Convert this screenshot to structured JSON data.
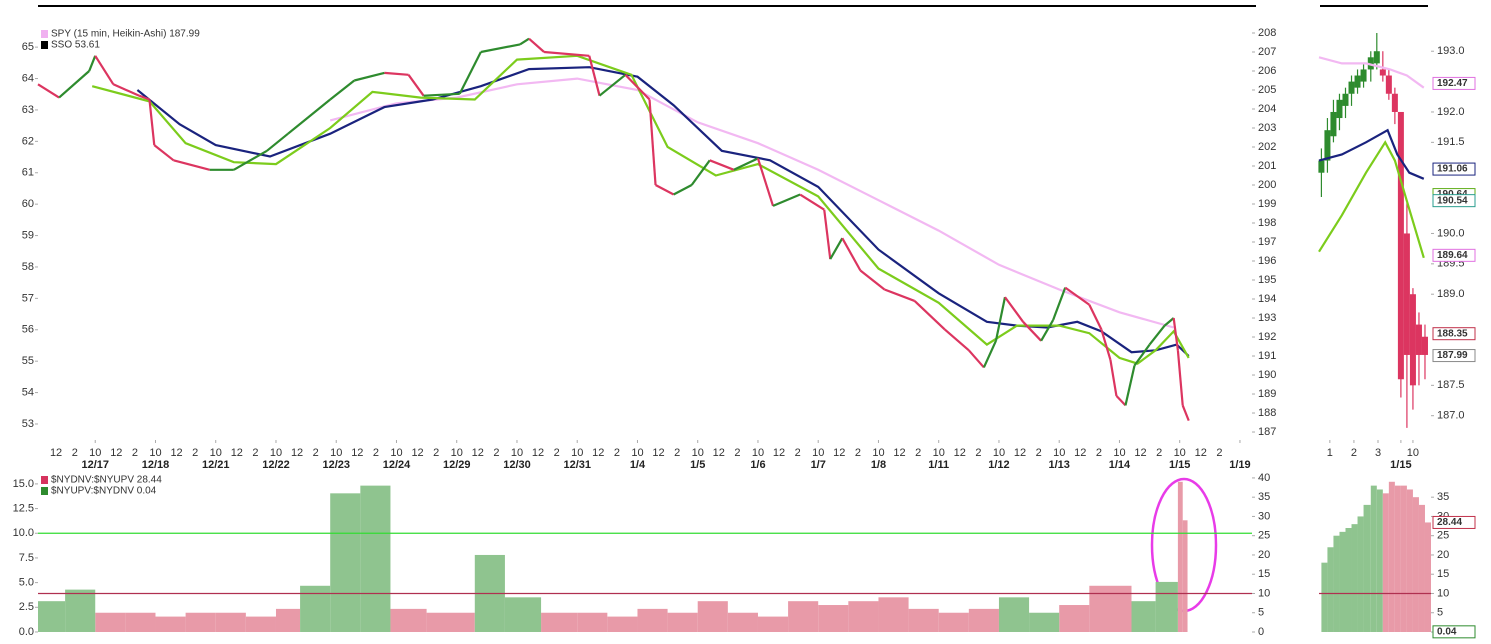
{
  "chart_data": [
    {
      "type": "line",
      "overlay_label": "SSO 53.61",
      "xlim": [
        -0.95,
        19.2
      ],
      "xticks": [
        {
          "value": 0,
          "label": "12/17"
        },
        {
          "value": 1,
          "label": "12/18"
        },
        {
          "value": 2,
          "label": "12/21"
        },
        {
          "value": 3,
          "label": "12/22"
        },
        {
          "value": 4,
          "label": "12/23"
        },
        {
          "value": 5,
          "label": "12/24"
        },
        {
          "value": 6,
          "label": "12/29"
        },
        {
          "value": 7,
          "label": "12/30"
        },
        {
          "value": 8,
          "label": "12/31"
        },
        {
          "value": 9,
          "label": "1/4"
        },
        {
          "value": 10,
          "label": "1/5"
        },
        {
          "value": 11,
          "label": "1/6"
        },
        {
          "value": 12,
          "label": "1/7"
        },
        {
          "value": 13,
          "label": "1/8"
        },
        {
          "value": 14,
          "label": "1/11"
        },
        {
          "value": 15,
          "label": "1/12"
        },
        {
          "value": 16,
          "label": "1/13"
        },
        {
          "value": 17,
          "label": "1/14"
        },
        {
          "value": 18,
          "label": "1/15"
        },
        {
          "value": 19,
          "label": "1/19"
        }
      ],
      "hour_labels": [
        "10",
        "12",
        "2"
      ],
      "ylim": [
        52.49,
        65.45
      ],
      "yticks": [
        53,
        54,
        55,
        56,
        57,
        58,
        59,
        60,
        61,
        62,
        63,
        64,
        65
      ],
      "y2lim": [
        186.58,
        208
      ],
      "y2ticks": [
        187,
        188,
        189,
        190,
        191,
        192,
        193,
        194,
        195,
        196,
        197,
        198,
        199,
        200,
        201,
        202,
        203,
        204,
        205,
        206,
        207,
        208
      ],
      "series": [
        {
          "name": "SPY (15 min, Heikin-Ashi) 187.99",
          "color": "#f0b0f0",
          "up_color": "#2e8b2e",
          "down_color": "#dc3560",
          "axis": "y2",
          "x": [
            -0.95,
            -0.6,
            -0.1,
            0,
            0.3,
            0.73,
            0.9,
            0.98,
            1.3,
            1.9,
            2.3,
            2.85,
            3.2,
            3.9,
            4.3,
            4.8,
            5.2,
            5.45,
            6.05,
            6.4,
            7.05,
            7.2,
            7.45,
            8.2,
            8.37,
            8.8,
            9.2,
            9.3,
            9.6,
            9.9,
            10.2,
            10.6,
            11.0,
            11.25,
            11.7,
            12.1,
            12.2,
            12.4,
            12.7,
            13.1,
            13.6,
            14.1,
            14.5,
            14.75,
            14.95,
            15.1,
            15.4,
            15.7,
            15.9,
            16.1,
            16.5,
            16.7,
            16.85,
            16.95,
            17.1,
            17.25,
            17.5,
            17.75,
            17.9,
            17.97,
            18.05,
            18.15
          ],
          "values": [
            205.3,
            204.6,
            206.0,
            206.8,
            205.3,
            204.7,
            204.5,
            202.1,
            201.3,
            200.8,
            200.8,
            201.8,
            202.7,
            204.5,
            205.5,
            205.9,
            205.8,
            204.7,
            204.8,
            207.0,
            207.4,
            207.7,
            207.0,
            206.8,
            204.7,
            205.8,
            204.5,
            200.0,
            199.5,
            200.0,
            201.3,
            200.8,
            201.4,
            198.9,
            199.5,
            198.7,
            196.1,
            197.2,
            195.5,
            194.5,
            193.9,
            192.4,
            191.3,
            190.4,
            191.8,
            194.1,
            192.8,
            191.8,
            192.9,
            194.6,
            193.7,
            192.4,
            190.8,
            188.9,
            188.4,
            190.5,
            191.6,
            192.6,
            193.0,
            191.3,
            188.4,
            187.6
          ]
        },
        {
          "color": "#7ccc1c",
          "axis": "y2",
          "x": [
            -0.05,
            0.9,
            1.5,
            2.3,
            3.0,
            3.9,
            4.6,
            5.4,
            6.3,
            7.0,
            8.0,
            8.9,
            9.5,
            10.3,
            11.0,
            12.0,
            13.0,
            14.0,
            14.8,
            15.3,
            16.0,
            16.5,
            17.0,
            17.3,
            17.6,
            17.9,
            18.15
          ],
          "values": [
            205.2,
            204.4,
            202.2,
            201.2,
            201.1,
            203.0,
            204.9,
            204.6,
            204.5,
            206.6,
            206.8,
            205.8,
            202.0,
            200.5,
            201.1,
            199.4,
            195.6,
            193.8,
            191.6,
            192.6,
            192.6,
            192.2,
            190.9,
            190.6,
            191.3,
            192.3,
            190.9
          ]
        },
        {
          "color": "#1a237e",
          "axis": "y2",
          "x": [
            0.7,
            1.4,
            2.0,
            2.9,
            3.9,
            4.8,
            5.6,
            6.4,
            7.2,
            8.2,
            9.0,
            9.6,
            10.4,
            11.2,
            12.0,
            13.0,
            14.0,
            14.8,
            15.3,
            15.8,
            16.3,
            16.7,
            17.2,
            17.6,
            17.95,
            18.15
          ],
          "values": [
            205.0,
            203.2,
            202.1,
            201.5,
            202.7,
            204.1,
            204.5,
            205.2,
            206.1,
            206.2,
            205.7,
            204.2,
            201.8,
            201.3,
            199.9,
            196.6,
            194.3,
            192.8,
            192.6,
            192.5,
            192.8,
            192.3,
            191.2,
            191.3,
            191.6,
            191.0
          ]
        },
        {
          "color": "#f2b8f2",
          "axis": "y2",
          "x": [
            3.9,
            5.0,
            6.0,
            7.0,
            8.0,
            9.0,
            10.0,
            11.0,
            12.0,
            13.0,
            14.0,
            15.0,
            16.0,
            17.0,
            17.9
          ],
          "values": [
            203.4,
            204.3,
            204.6,
            205.3,
            205.6,
            205.0,
            203.3,
            202.2,
            200.8,
            199.2,
            197.6,
            195.8,
            194.5,
            193.3,
            192.5
          ]
        }
      ]
    },
    {
      "type": "bar",
      "xlim": [
        -0.95,
        19.2
      ],
      "ylim": [
        -0.51,
        15.8
      ],
      "yticks": [
        {
          "value": 0,
          "label": "0.0"
        },
        2.5,
        {
          "value": 5,
          "label": "5.0"
        },
        7.5,
        {
          "value": 10,
          "label": "10.0"
        },
        12.5,
        {
          "value": 15,
          "label": "15.0"
        }
      ],
      "y2lim": [
        -1.3,
        40.5
      ],
      "y2ticks": [
        0,
        5,
        10,
        15,
        20,
        25,
        30,
        35,
        40
      ],
      "reference_lines": [
        {
          "value": 10,
          "color": "#33dd33"
        },
        {
          "value": 10,
          "axis": "y2",
          "color": "#b03050"
        }
      ],
      "x": [
        -0.95,
        -0.5,
        0,
        0.5,
        1.0,
        1.5,
        2.0,
        2.5,
        3.0,
        3.4,
        3.9,
        4.4,
        4.9,
        5.5,
        6.3,
        6.8,
        7.4,
        8.0,
        8.5,
        9.0,
        9.5,
        10.0,
        10.5,
        11.0,
        11.5,
        12.0,
        12.5,
        13.0,
        13.5,
        14.0,
        14.5,
        15.0,
        15.5,
        16.0,
        16.5,
        17.2,
        17.6,
        17.97,
        18.05
      ],
      "series": [
        {
          "name": "$NYDNV:$NYUPV 28.44",
          "color": "#e89aa8",
          "axis": "y2",
          "values": [
            null,
            null,
            5,
            5,
            4,
            5,
            5,
            4,
            6,
            null,
            null,
            null,
            6,
            5,
            null,
            null,
            5,
            5,
            4,
            6,
            5,
            8,
            5,
            4,
            8,
            7,
            8,
            9,
            6,
            5,
            6,
            null,
            null,
            7,
            12,
            null,
            null,
            39,
            29
          ]
        },
        {
          "name": "$NYUPV:$NYDNV 0.04",
          "color": "#8fc48f",
          "axis": "y2",
          "values": [
            8,
            11,
            null,
            null,
            null,
            null,
            null,
            null,
            null,
            12,
            36,
            38,
            null,
            null,
            20,
            9,
            null,
            null,
            null,
            null,
            null,
            null,
            null,
            null,
            null,
            null,
            null,
            null,
            null,
            null,
            null,
            9,
            5,
            null,
            null,
            8,
            13,
            null,
            null
          ]
        }
      ]
    },
    {
      "type": "candlestick",
      "xlim": [
        -0.45,
        4.2
      ],
      "xticks": [
        {
          "value": 0,
          "label": "1"
        },
        {
          "value": 1,
          "label": "2"
        },
        {
          "value": 2,
          "label": "3"
        },
        {
          "value": 3.45,
          "label": "10"
        }
      ],
      "date_ticks": [
        {
          "value": 2.95,
          "label": "1/15"
        }
      ],
      "ylim": [
        186.6,
        193.3
      ],
      "yticks": [
        {
          "value": 187,
          "label": "187.0"
        },
        187.5,
        {
          "value": 189,
          "label": "189.0"
        },
        189.5,
        {
          "value": 190,
          "label": "190.0"
        },
        191.5,
        {
          "value": 192,
          "label": "192.0"
        },
        {
          "value": 193,
          "label": "193.0"
        }
      ],
      "up_color": "#2e8b2e",
      "down_color": "#dc3560",
      "candles": {
        "x": [
          -0.35,
          -0.1,
          0.15,
          0.4,
          0.65,
          0.9,
          1.15,
          1.4,
          1.7,
          1.95,
          2.2,
          2.45,
          2.7,
          2.95,
          3.2,
          3.45,
          3.7,
          3.95
        ],
        "open": [
          191.0,
          191.2,
          191.6,
          191.9,
          192.1,
          192.3,
          192.4,
          192.5,
          192.7,
          192.8,
          192.7,
          192.6,
          192.3,
          192.0,
          190.0,
          189.0,
          188.5,
          188.3
        ],
        "high": [
          191.4,
          191.9,
          192.2,
          192.3,
          192.4,
          192.6,
          192.7,
          192.8,
          193.0,
          193.3,
          193.0,
          192.7,
          192.4,
          192.0,
          190.5,
          189.1,
          188.7,
          188.5
        ],
        "low": [
          190.6,
          191.0,
          191.5,
          191.7,
          191.9,
          192.1,
          192.3,
          192.4,
          192.5,
          192.7,
          192.5,
          192.2,
          191.8,
          187.3,
          186.8,
          187.1,
          187.5,
          187.6
        ],
        "close": [
          191.2,
          191.7,
          192.0,
          192.2,
          192.3,
          192.5,
          192.6,
          192.7,
          192.9,
          193.0,
          192.6,
          192.3,
          192.0,
          187.6,
          188.0,
          187.5,
          188.0,
          188.0
        ]
      },
      "series": [
        {
          "color": "#f2b8f2",
          "x": [
            -0.45,
            0.5,
            1.5,
            2.5,
            3.2,
            3.9
          ],
          "values": [
            192.9,
            192.8,
            192.8,
            192.7,
            192.6,
            192.4
          ]
        },
        {
          "color": "#7ccc1c",
          "x": [
            -0.45,
            0.5,
            1.5,
            2.3,
            2.7,
            3.3,
            3.9
          ],
          "values": [
            189.7,
            190.3,
            191.0,
            191.5,
            191.2,
            190.4,
            189.6
          ]
        },
        {
          "color": "#1a237e",
          "x": [
            -0.45,
            0.5,
            1.5,
            2.4,
            2.8,
            3.3,
            3.9
          ],
          "values": [
            191.2,
            191.3,
            191.5,
            191.7,
            191.3,
            191.0,
            190.9
          ]
        }
      ],
      "price_labels": [
        {
          "value": 192.47,
          "color": "#e070e0"
        },
        {
          "value": 191.06,
          "color": "#1a237e"
        },
        {
          "value": 190.64,
          "color": "#5fae1a"
        },
        {
          "value": 190.54,
          "color": "#2a9d8f"
        },
        {
          "value": 189.64,
          "color": "#e070e0"
        },
        {
          "value": 188.35,
          "color": "#c0304a"
        },
        {
          "value": 187.99,
          "color": "#888888"
        }
      ]
    },
    {
      "type": "bar",
      "xlim": [
        -0.45,
        4.2
      ],
      "ylim": [
        -1.3,
        40.5
      ],
      "yticks": [
        0,
        5,
        10,
        15,
        20,
        25,
        30,
        35
      ],
      "reference_lines": [
        {
          "value": 10,
          "color": "#b03050"
        }
      ],
      "x": [
        -0.35,
        -0.1,
        0.15,
        0.4,
        0.65,
        0.9,
        1.15,
        1.4,
        1.7,
        1.95,
        2.2,
        2.45,
        2.7,
        2.95,
        3.2,
        3.45,
        3.7,
        3.95
      ],
      "series": [
        {
          "color": "#8fc48f",
          "values": [
            18,
            22,
            25,
            26,
            27,
            28,
            30,
            33,
            38,
            37,
            null,
            null,
            null,
            null,
            null,
            null,
            null,
            null
          ]
        },
        {
          "color": "#e89aa8",
          "values": [
            null,
            null,
            null,
            null,
            null,
            null,
            null,
            null,
            null,
            null,
            36,
            39,
            38,
            38,
            37,
            35,
            33,
            28.44
          ]
        }
      ],
      "price_labels": [
        {
          "value": 28.44,
          "color": "#c0304a"
        },
        {
          "value": 0.04,
          "color": "#2e8b2e"
        }
      ]
    }
  ]
}
